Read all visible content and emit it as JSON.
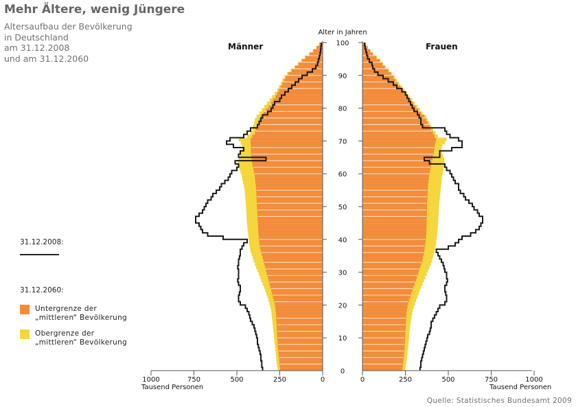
{
  "header": {
    "title": "Mehr Ältere, wenig Jüngere",
    "subtitle_lines": [
      "Altersaufbau der Bevölkerung",
      "in Deutschland",
      "am 31.12.2008",
      "und am 31.12.2060"
    ]
  },
  "legend": {
    "date_2008": "31.12.2008:",
    "date_2060": "31.12.2060:",
    "lower_label_1": "Untergrenze der",
    "lower_label_2": "„mittleren“ Bevölkerung",
    "upper_label_1": "Obergrenze der",
    "upper_label_2": "„mittleren“ Bevölkerung"
  },
  "source": "Quelle: Statistisches Bundesamt 2009",
  "colors": {
    "lower_2060": "#f28c3c",
    "upper_2060": "#f5d63c",
    "line_2008": "#1a1a1a",
    "axis": "#555555",
    "gap": "#f6d9b8"
  },
  "chart_data": {
    "type": "bar",
    "subtype": "population-pyramid",
    "title": "Altersaufbau der Bevölkerung in Deutschland",
    "y_axis_label": "Alter in Jahren",
    "x_axis_label": "Tausend Personen",
    "y_range": [
      0,
      100
    ],
    "y_ticks": [
      0,
      10,
      20,
      30,
      40,
      50,
      60,
      70,
      80,
      90,
      100
    ],
    "x_range": [
      0,
      1000
    ],
    "x_ticks": [
      0,
      250,
      500,
      750,
      1000
    ],
    "left_panel_title": "Männer",
    "right_panel_title": "Frauen",
    "legend_position": "left",
    "ages": [
      0,
      1,
      2,
      3,
      4,
      5,
      6,
      7,
      8,
      9,
      10,
      11,
      12,
      13,
      14,
      15,
      16,
      17,
      18,
      19,
      20,
      21,
      22,
      23,
      24,
      25,
      26,
      27,
      28,
      29,
      30,
      31,
      32,
      33,
      34,
      35,
      36,
      37,
      38,
      39,
      40,
      41,
      42,
      43,
      44,
      45,
      46,
      47,
      48,
      49,
      50,
      51,
      52,
      53,
      54,
      55,
      56,
      57,
      58,
      59,
      60,
      61,
      62,
      63,
      64,
      65,
      66,
      67,
      68,
      69,
      70,
      71,
      72,
      73,
      74,
      75,
      76,
      77,
      78,
      79,
      80,
      81,
      82,
      83,
      84,
      85,
      86,
      87,
      88,
      89,
      90,
      91,
      92,
      93,
      94,
      95,
      96,
      97,
      98,
      99
    ],
    "series": [
      {
        "name": "Männer 2060 Untergrenze",
        "values": [
          248,
          250,
          252,
          254,
          256,
          258,
          260,
          262,
          263,
          264,
          265,
          266,
          267,
          268,
          269,
          270,
          271,
          272,
          274,
          277,
          280,
          285,
          290,
          295,
          300,
          305,
          310,
          315,
          320,
          325,
          330,
          335,
          340,
          345,
          350,
          355,
          360,
          365,
          368,
          370,
          372,
          374,
          375,
          376,
          377,
          378,
          379,
          380,
          381,
          382,
          383,
          384,
          385,
          386,
          387,
          388,
          390,
          392,
          394,
          396,
          400,
          404,
          408,
          412,
          414,
          416,
          418,
          418,
          418,
          420,
          420,
          410,
          395,
          390,
          385,
          375,
          370,
          360,
          345,
          330,
          315,
          300,
          290,
          275,
          265,
          255,
          245,
          235,
          225,
          215,
          200,
          180,
          160,
          140,
          120,
          100,
          75,
          55,
          35,
          20
        ]
      },
      {
        "name": "Männer 2060 Obergrenze",
        "values": [
          262,
          265,
          268,
          270,
          272,
          274,
          276,
          278,
          280,
          282,
          284,
          286,
          288,
          290,
          292,
          294,
          296,
          298,
          301,
          305,
          310,
          316,
          322,
          328,
          335,
          342,
          350,
          358,
          365,
          372,
          380,
          388,
          395,
          402,
          408,
          414,
          420,
          424,
          428,
          430,
          432,
          434,
          436,
          438,
          440,
          442,
          443,
          444,
          445,
          446,
          447,
          448,
          450,
          452,
          454,
          456,
          460,
          464,
          468,
          472,
          478,
          484,
          490,
          494,
          490,
          480,
          475,
          470,
          470,
          478,
          490,
          440,
          420,
          410,
          405,
          400,
          395,
          385,
          370,
          355,
          340,
          325,
          310,
          295,
          280,
          265,
          255,
          245,
          235,
          222,
          208,
          188,
          165,
          145,
          125,
          105,
          80,
          58,
          38,
          22
        ]
      },
      {
        "name": "Männer 2008",
        "values": [
          350,
          355,
          355,
          360,
          360,
          365,
          370,
          375,
          380,
          380,
          385,
          390,
          395,
          400,
          410,
          420,
          425,
          430,
          440,
          450,
          480,
          490,
          490,
          485,
          480,
          480,
          490,
          495,
          490,
          490,
          490,
          495,
          490,
          490,
          485,
          480,
          480,
          470,
          460,
          440,
          580,
          670,
          700,
          710,
          720,
          740,
          740,
          720,
          700,
          690,
          680,
          670,
          650,
          640,
          620,
          600,
          590,
          570,
          550,
          540,
          530,
          500,
          490,
          510,
          330,
          490,
          480,
          460,
          520,
          560,
          540,
          460,
          440,
          420,
          380,
          370,
          360,
          350,
          320,
          300,
          290,
          280,
          250,
          240,
          220,
          200,
          180,
          160,
          140,
          120,
          90,
          60,
          40,
          30,
          25,
          20,
          15,
          12,
          10,
          8
        ]
      },
      {
        "name": "Frauen 2060 Untergrenze",
        "values": [
          232,
          235,
          237,
          239,
          241,
          243,
          245,
          246,
          247,
          248,
          249,
          250,
          251,
          252,
          253,
          254,
          255,
          256,
          258,
          262,
          266,
          272,
          278,
          284,
          290,
          297,
          304,
          311,
          318,
          324,
          330,
          336,
          342,
          348,
          352,
          356,
          360,
          363,
          366,
          368,
          370,
          371,
          372,
          373,
          373,
          374,
          374,
          375,
          375,
          376,
          376,
          377,
          378,
          379,
          380,
          381,
          382,
          384,
          386,
          388,
          392,
          396,
          400,
          404,
          408,
          412,
          416,
          418,
          420,
          425,
          430,
          420,
          410,
          400,
          390,
          380,
          370,
          360,
          340,
          325,
          310,
          295,
          280,
          265,
          250,
          235,
          220,
          205,
          190,
          180,
          165,
          150,
          130,
          115,
          100,
          80,
          60,
          45,
          30,
          20
        ]
      },
      {
        "name": "Frauen 2060 Obergrenze",
        "values": [
          248,
          252,
          255,
          258,
          260,
          262,
          264,
          266,
          268,
          270,
          272,
          274,
          276,
          278,
          280,
          283,
          286,
          290,
          294,
          300,
          306,
          313,
          320,
          327,
          334,
          342,
          350,
          358,
          366,
          374,
          382,
          390,
          398,
          404,
          410,
          415,
          420,
          424,
          428,
          430,
          432,
          434,
          436,
          438,
          440,
          441,
          442,
          443,
          444,
          445,
          446,
          448,
          450,
          452,
          454,
          456,
          458,
          460,
          462,
          464,
          468,
          472,
          476,
          478,
          476,
          470,
          462,
          460,
          465,
          480,
          490,
          440,
          425,
          412,
          400,
          390,
          380,
          370,
          350,
          335,
          320,
          305,
          290,
          275,
          260,
          245,
          230,
          215,
          200,
          188,
          172,
          155,
          135,
          120,
          105,
          85,
          62,
          47,
          32,
          22
        ]
      },
      {
        "name": "Frauen 2008",
        "values": [
          335,
          340,
          340,
          345,
          350,
          355,
          360,
          365,
          370,
          375,
          380,
          390,
          395,
          400,
          400,
          410,
          420,
          430,
          440,
          450,
          480,
          490,
          490,
          485,
          480,
          480,
          490,
          495,
          490,
          490,
          480,
          475,
          470,
          460,
          450,
          440,
          430,
          500,
          540,
          560,
          580,
          630,
          660,
          680,
          690,
          700,
          700,
          680,
          670,
          650,
          640,
          620,
          600,
          590,
          570,
          560,
          560,
          540,
          530,
          520,
          510,
          490,
          480,
          390,
          360,
          450,
          450,
          520,
          580,
          580,
          560,
          510,
          490,
          480,
          350,
          340,
          340,
          330,
          320,
          300,
          290,
          280,
          270,
          260,
          250,
          230,
          200,
          180,
          150,
          120,
          90,
          70,
          60,
          55,
          40,
          30,
          25,
          20,
          15,
          12
        ]
      }
    ]
  }
}
